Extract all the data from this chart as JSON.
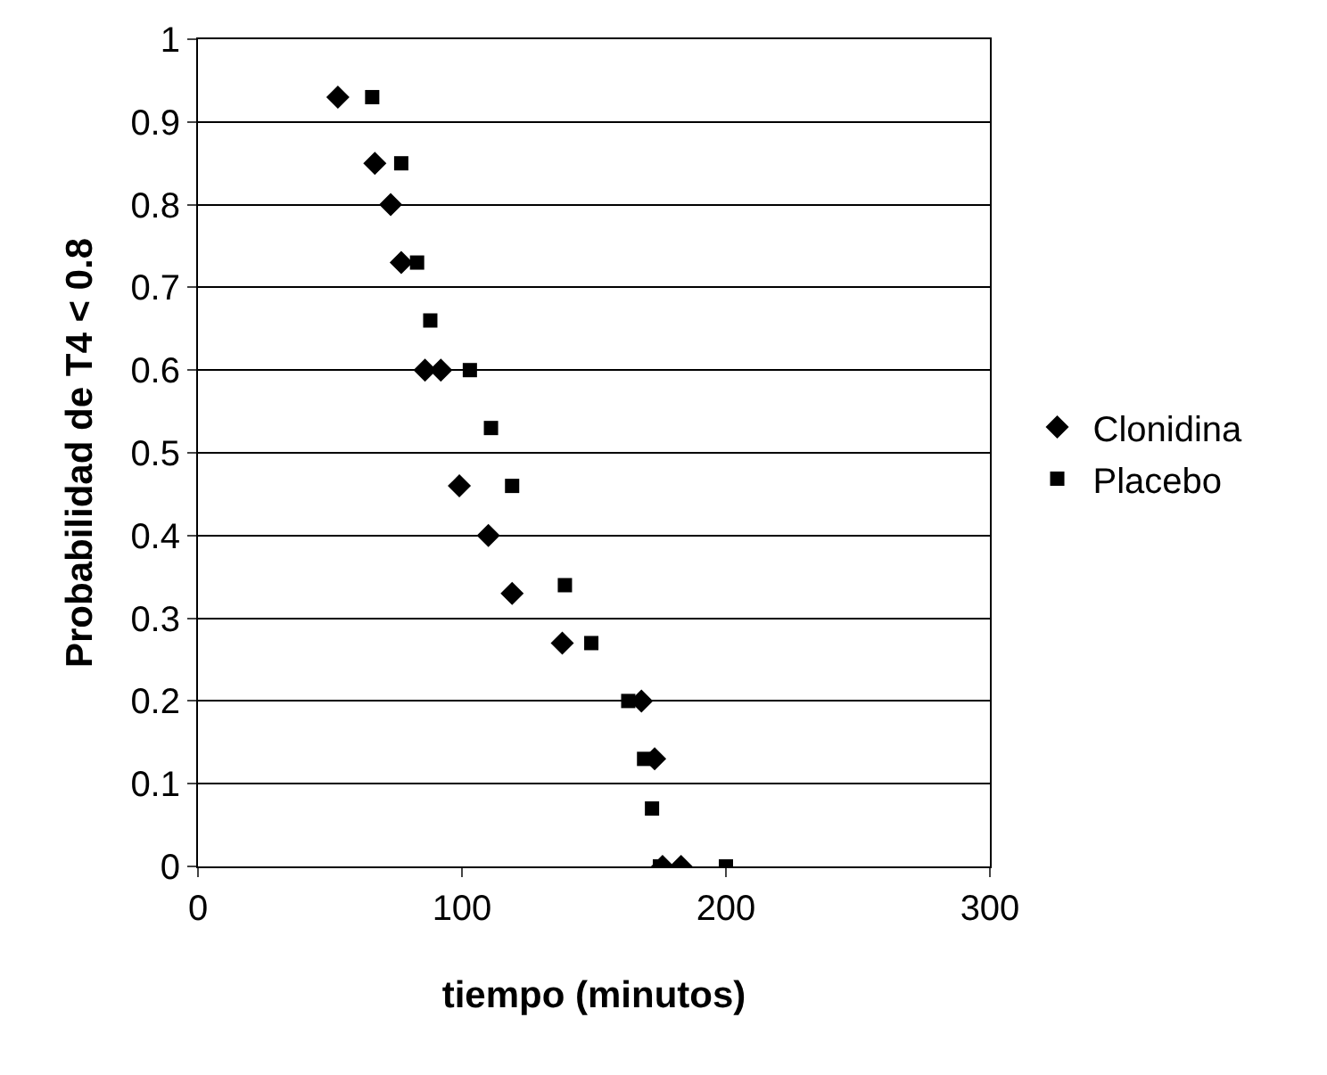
{
  "chart_data": {
    "type": "scatter",
    "xlabel": "tiempo (minutos)",
    "ylabel": "Probabilidad de T4 < 0.8",
    "xlim": [
      0,
      300
    ],
    "xticks": [
      0,
      100,
      200,
      300
    ],
    "ylim": [
      0,
      1
    ],
    "yticks": [
      0,
      0.1,
      0.2,
      0.3,
      0.4,
      0.5,
      0.6,
      0.7,
      0.8,
      0.9,
      1
    ],
    "grid": "y",
    "legend": "right",
    "series": [
      {
        "name": "Clonidina",
        "color": "#000000",
        "marker": "diamond",
        "x": [
          53,
          67,
          73,
          77,
          86,
          92,
          99,
          110,
          119,
          138,
          168,
          173,
          176,
          183
        ],
        "values": [
          0.93,
          0.85,
          0.8,
          0.73,
          0.6,
          0.6,
          0.46,
          0.4,
          0.33,
          0.27,
          0.2,
          0.13,
          0,
          0
        ]
      },
      {
        "name": "Placebo",
        "color": "#000000",
        "marker": "square",
        "x": [
          66,
          77,
          83,
          88,
          103,
          111,
          119,
          139,
          149,
          163,
          169,
          172,
          175,
          200
        ],
        "values": [
          0.93,
          0.85,
          0.73,
          0.66,
          0.6,
          0.53,
          0.46,
          0.34,
          0.27,
          0.2,
          0.13,
          0.07,
          0,
          0
        ]
      }
    ]
  }
}
